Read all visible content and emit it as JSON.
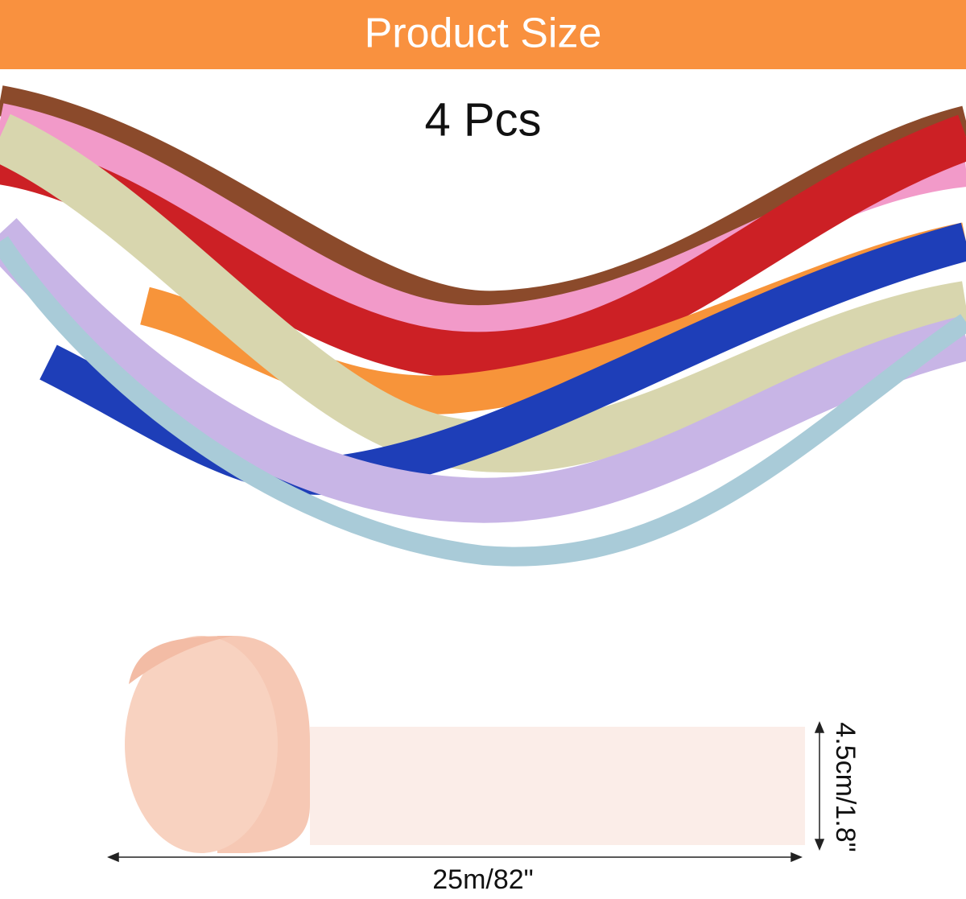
{
  "header": {
    "title": "Product Size"
  },
  "quantity": "4 Pcs",
  "dimensions": {
    "length": "25m/82\"",
    "width": "4.5cm/1.8\""
  }
}
